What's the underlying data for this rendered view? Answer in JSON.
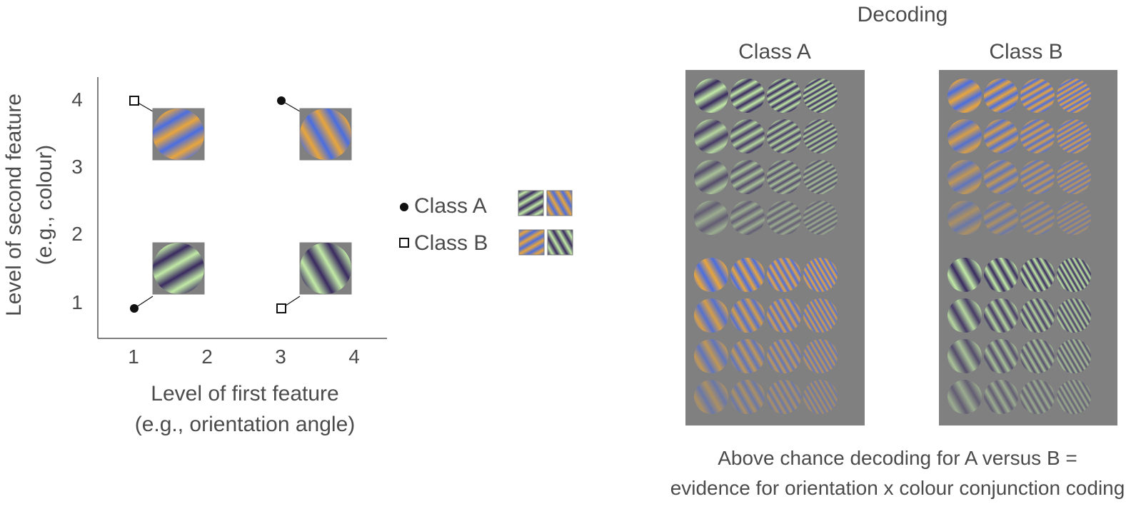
{
  "colors": {
    "background": "#ffffff",
    "text": "#4b4b4b",
    "axis": "#555555",
    "panel_gray": "#808080",
    "green_light": "#c2eaa6",
    "purple_dark": "#3a2a60",
    "orange": "#e8a53c",
    "blue": "#4a6ee0"
  },
  "feature_space": {
    "y_axis_label_line1": "Level of second feature",
    "y_axis_label_line2": "(e.g., colour)",
    "x_axis_label_line1": "Level of first feature",
    "x_axis_label_line2": "(e.g., orientation angle)",
    "x_ticks": [
      "1",
      "2",
      "3",
      "4"
    ],
    "y_ticks": [
      "1",
      "2",
      "3",
      "4"
    ],
    "points": [
      {
        "x": 1,
        "y": 1,
        "class": "A",
        "orientation_deg": 60,
        "colour": "green-purple"
      },
      {
        "x": 3,
        "y": 1,
        "class": "B",
        "orientation_deg": 150,
        "colour": "green-purple"
      },
      {
        "x": 1,
        "y": 4,
        "class": "B",
        "orientation_deg": 60,
        "colour": "orange-blue"
      },
      {
        "x": 3,
        "y": 4,
        "class": "A",
        "orientation_deg": 150,
        "colour": "orange-blue"
      }
    ]
  },
  "legend": {
    "class_a_label": "Class A",
    "class_b_label": "Class B",
    "class_a_marker": "filled-circle",
    "class_b_marker": "open-square"
  },
  "decoding": {
    "title": "Decoding",
    "class_a_title": "Class A",
    "class_b_title": "Class B",
    "caption_line1": "Above chance decoding for A versus B =",
    "caption_line2": "evidence for orientation x colour conjunction coding",
    "columns_spatial_frequency": 4,
    "rows_contrast": 4
  }
}
